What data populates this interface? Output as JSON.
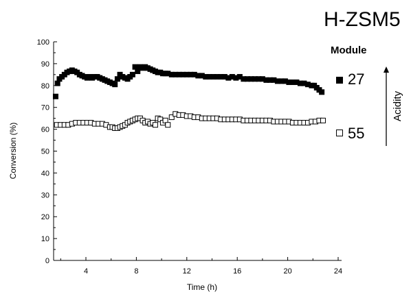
{
  "chart_data": {
    "type": "scatter",
    "title": "H-ZSM5",
    "xlabel": "Time (h)",
    "ylabel": "Conversion (%)",
    "xlim": [
      1.5,
      25
    ],
    "ylim": [
      0,
      100
    ],
    "xticks": [
      4,
      8,
      12,
      16,
      20,
      24
    ],
    "yticks": [
      0,
      10,
      20,
      30,
      40,
      50,
      60,
      70,
      80,
      90,
      100
    ],
    "tick_labels_x": [
      "4",
      "8",
      "12",
      "16",
      "20",
      "24"
    ],
    "tick_labels_y": [
      "0",
      "10",
      "20",
      "30",
      "40",
      "50",
      "60",
      "70",
      "80",
      "90",
      "100"
    ],
    "legend_title": "Module",
    "legend_placement": "right",
    "side_annotation": "Acidity",
    "series": [
      {
        "name": "27",
        "marker": "filled-square",
        "color": "#000000",
        "x": [
          1.6,
          1.75,
          1.9,
          2.1,
          2.3,
          2.5,
          2.7,
          2.9,
          3.1,
          3.3,
          3.5,
          3.7,
          3.9,
          4.1,
          4.3,
          4.5,
          4.7,
          4.9,
          5.1,
          5.3,
          5.5,
          5.7,
          5.9,
          6.1,
          6.3,
          6.5,
          6.7,
          6.9,
          7.1,
          7.3,
          7.5,
          7.7,
          7.9,
          8.1,
          8.3,
          8.5,
          8.7,
          8.9,
          9.1,
          9.3,
          9.5,
          9.7,
          9.9,
          10.1,
          10.3,
          10.5,
          10.8,
          11.1,
          11.4,
          11.7,
          12.0,
          12.3,
          12.6,
          12.9,
          13.2,
          13.5,
          13.8,
          14.1,
          14.4,
          14.7,
          15.0,
          15.3,
          15.6,
          15.9,
          16.2,
          16.5,
          16.8,
          17.1,
          17.4,
          17.7,
          18.0,
          18.3,
          18.6,
          18.9,
          19.2,
          19.5,
          19.8,
          20.1,
          20.4,
          20.7,
          21.0,
          21.3,
          21.6,
          21.9,
          22.1,
          22.3,
          22.5,
          22.7
        ],
        "y": [
          75,
          81,
          83,
          84,
          85,
          86,
          86.5,
          87,
          86.5,
          86,
          85,
          84.5,
          84,
          83.5,
          84,
          83.5,
          84,
          84,
          83.5,
          83,
          82.5,
          82,
          81.5,
          81,
          80.5,
          83,
          85,
          84,
          83.5,
          83,
          84,
          85,
          88.5,
          86.5,
          88.5,
          88,
          88.5,
          88,
          87.5,
          87,
          86.5,
          86,
          86,
          85.5,
          85.5,
          85.5,
          85,
          85,
          85,
          85,
          85,
          85,
          85,
          84.5,
          84.5,
          84,
          84,
          84,
          84,
          84,
          84,
          83.5,
          84,
          83.5,
          84,
          83,
          83,
          83,
          83,
          83,
          83,
          82.5,
          82.5,
          82.5,
          82,
          82,
          82,
          81.5,
          81.5,
          81.5,
          81,
          81,
          80.5,
          80,
          80,
          79,
          78,
          77
        ]
      },
      {
        "name": "55",
        "marker": "open-square",
        "color": "#000000",
        "x": [
          1.7,
          2.0,
          2.3,
          2.6,
          2.9,
          3.2,
          3.5,
          3.8,
          4.1,
          4.4,
          4.7,
          5.0,
          5.3,
          5.6,
          5.9,
          6.1,
          6.3,
          6.5,
          6.7,
          6.9,
          7.1,
          7.3,
          7.5,
          7.7,
          7.9,
          8.1,
          8.3,
          8.5,
          8.7,
          8.9,
          9.1,
          9.3,
          9.5,
          9.7,
          9.9,
          10.1,
          10.3,
          10.5,
          10.8,
          11.1,
          11.4,
          11.7,
          12.0,
          12.3,
          12.6,
          12.9,
          13.2,
          13.5,
          13.8,
          14.1,
          14.4,
          14.7,
          15.0,
          15.3,
          15.6,
          15.9,
          16.2,
          16.5,
          16.8,
          17.1,
          17.4,
          17.7,
          18.0,
          18.3,
          18.6,
          18.9,
          19.2,
          19.5,
          19.8,
          20.1,
          20.4,
          20.7,
          21.0,
          21.3,
          21.6,
          21.9,
          22.2,
          22.5,
          22.8
        ],
        "y": [
          62,
          62,
          62,
          62,
          62.5,
          63,
          63,
          63,
          63,
          63,
          62.5,
          62.5,
          62.5,
          62,
          61,
          61,
          60.5,
          60.5,
          61,
          61.5,
          62,
          63,
          63.5,
          64,
          64.5,
          65,
          65,
          64,
          63,
          63.5,
          62.5,
          63,
          62,
          65,
          64.5,
          63,
          64,
          62,
          65.5,
          67,
          66.5,
          66.5,
          66,
          66,
          65.5,
          65.5,
          65,
          65,
          65,
          65,
          65,
          64.5,
          64.5,
          64.5,
          64.5,
          64.5,
          64.5,
          64,
          64,
          64,
          64,
          64,
          64,
          64,
          64,
          63.5,
          63.5,
          63.5,
          63.5,
          63.5,
          63,
          63,
          63,
          63,
          63,
          63.5,
          63.5,
          64,
          64
        ]
      }
    ]
  }
}
